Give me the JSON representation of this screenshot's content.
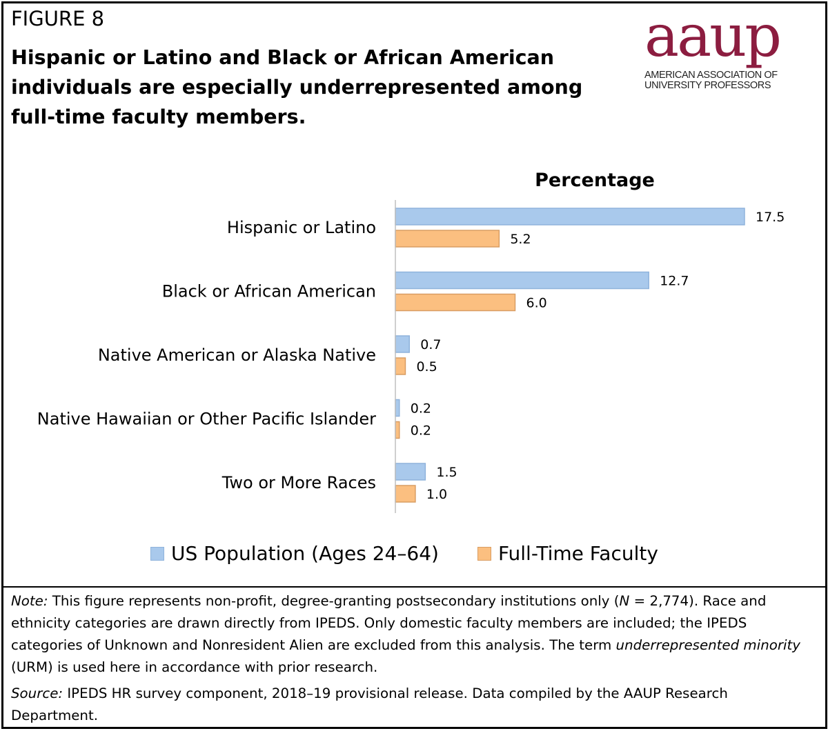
{
  "figure_label": "FIGURE 8",
  "headline": "Hispanic or Latino and Black or African American individuals are especially underrepresented among full-time faculty members.",
  "logo": {
    "wordmark": "aaup",
    "line1": "AMERICAN ASSOCIATION OF",
    "line2": "UNIVERSITY PROFESSORS",
    "color": "#8c1d40"
  },
  "chart_data": {
    "type": "bar",
    "orientation": "horizontal",
    "title": "Percentage",
    "categories": [
      "Hispanic or Latino",
      "Black or African American",
      "Native American or Alaska Native",
      "Native Hawaiian or Other Pacific Islander",
      "Two or More Races"
    ],
    "series": [
      {
        "name": "US Population (Ages 24–64)",
        "values": [
          17.5,
          12.7,
          0.7,
          0.2,
          1.5
        ],
        "labels": [
          "17.5",
          "12.7",
          "0.7",
          "0.2",
          "1.5"
        ],
        "color": "#a9c9ec",
        "stroke": "#8fb3dc"
      },
      {
        "name": "Full-Time Faculty",
        "values": [
          5.2,
          6.0,
          0.5,
          0.2,
          1.0
        ],
        "labels": [
          "5.2",
          "6.0",
          "0.5",
          "0.2",
          "1.0"
        ],
        "color": "#fbbf80",
        "stroke": "#d99d63"
      }
    ],
    "xlim": [
      0,
      17.5
    ],
    "grid": false,
    "legend": "bottom"
  },
  "notes": {
    "note_label": "Note:",
    "note_text_1": " This figure represents non-profit, degree-granting postsecondary institutions only (",
    "note_n": "N",
    "note_text_2": " = 2,774). Race and ethnicity categories are drawn directly from IPEDS. Only domestic faculty members are included; the IPEDS categories of Unknown and Nonresident Alien are excluded from this analysis. The term ",
    "note_term": "underrepresented minority",
    "note_text_3": " (URM) is used here in accordance with prior research.",
    "source_label": "Source:",
    "source_text": " IPEDS HR survey component, 2018–19 provisional release. Data compiled by the AAUP Research Department."
  }
}
